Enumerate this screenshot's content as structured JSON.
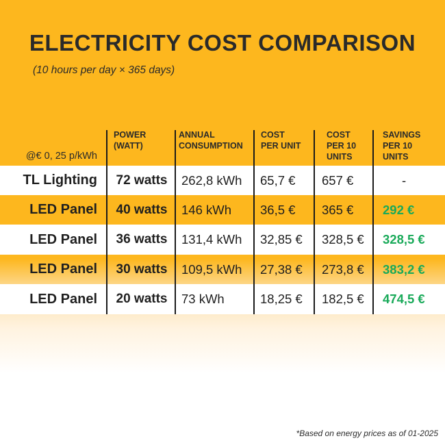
{
  "title": "ELECTRICITY COST COMPARISON",
  "subtitle": "(10 hours per day × 365 days)",
  "colors": {
    "background": "#fdb71e",
    "savings": "#1aaa5a",
    "text": "#2a2a2a"
  },
  "table": {
    "headers": [
      "@€ 0, 25 p/kWh",
      "POWER\n(WATT)",
      "ANNUAL\nCONSUMPTION",
      "COST\nPER UNIT",
      "COST\nPER 10\nUNITS",
      "SAVINGS\nPER 10\nUNITS"
    ],
    "rows": [
      [
        "TL Lighting",
        "72 watts",
        "262,8 kWh",
        "65,7 €",
        "657 €",
        "-"
      ],
      [
        "LED Panel",
        "40 watts",
        "146 kWh",
        "36,5 €",
        "365 €",
        "292 €"
      ],
      [
        "LED Panel",
        "36 watts",
        "131,4 kWh",
        "32,85 €",
        "328,5 €",
        "328,5 €"
      ],
      [
        "LED Panel",
        "30 watts",
        "109,5 kWh",
        "27,38 €",
        "273,8 €",
        "383,2 €"
      ],
      [
        "LED Panel",
        "20 watts",
        "73 kWh",
        "18,25 €",
        "182,5 €",
        "474,5 €"
      ]
    ]
  },
  "footnote": "*Based on energy prices as of 01-2025"
}
